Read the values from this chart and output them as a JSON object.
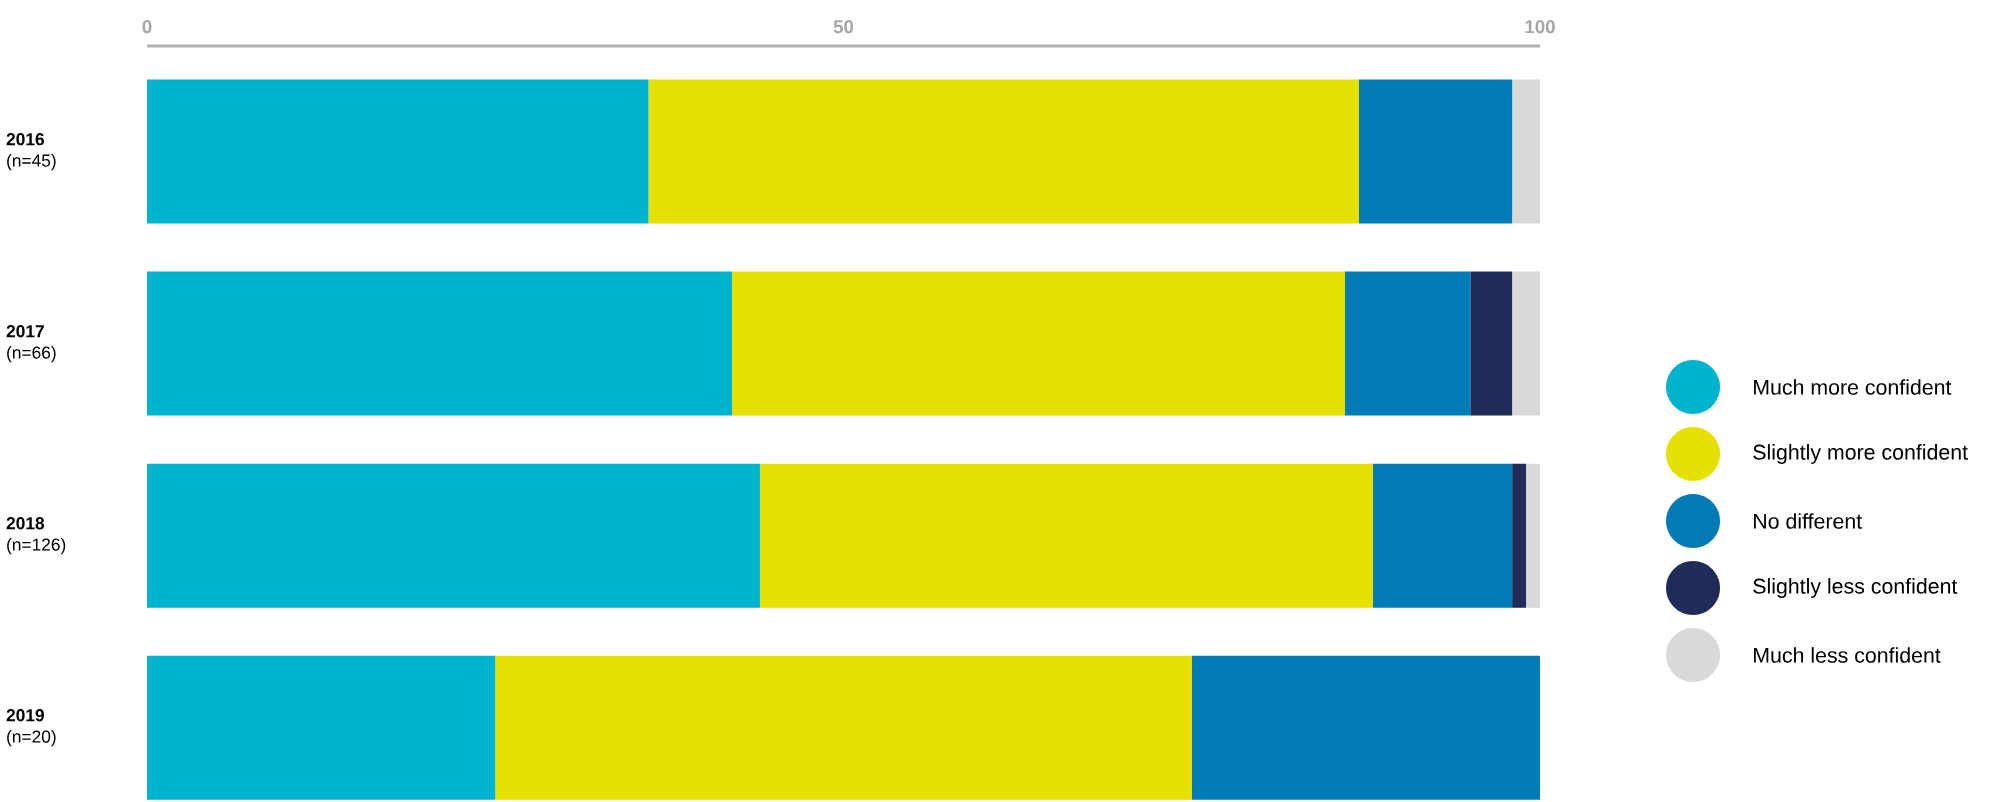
{
  "chart_data": {
    "type": "bar",
    "orientation": "horizontal",
    "stacked": true,
    "categories": [
      "**2016** (n=45)",
      "**2017** (n=66)",
      "**2018** (n=126)",
      "**2019** (n=20)"
    ],
    "series": [
      {
        "name": "Much more confident",
        "color": "#00b3cc",
        "values": [
          36,
          42,
          44,
          25
        ]
      },
      {
        "name": "Slightly more confident",
        "color": "#e6e000",
        "values": [
          51,
          44,
          44,
          50
        ]
      },
      {
        "name": "No different",
        "color": "#007bb6",
        "values": [
          11,
          9,
          10,
          25
        ]
      },
      {
        "name": "Slightly less confident",
        "color": "#212b58",
        "values": [
          0,
          3,
          1,
          0
        ]
      },
      {
        "name": "Much less confident",
        "color": "#d9d9d9",
        "values": [
          2,
          2,
          1,
          0
        ]
      }
    ],
    "xlim": [
      0,
      100
    ],
    "xticks": [
      0,
      50,
      100
    ],
    "legend": "right"
  }
}
